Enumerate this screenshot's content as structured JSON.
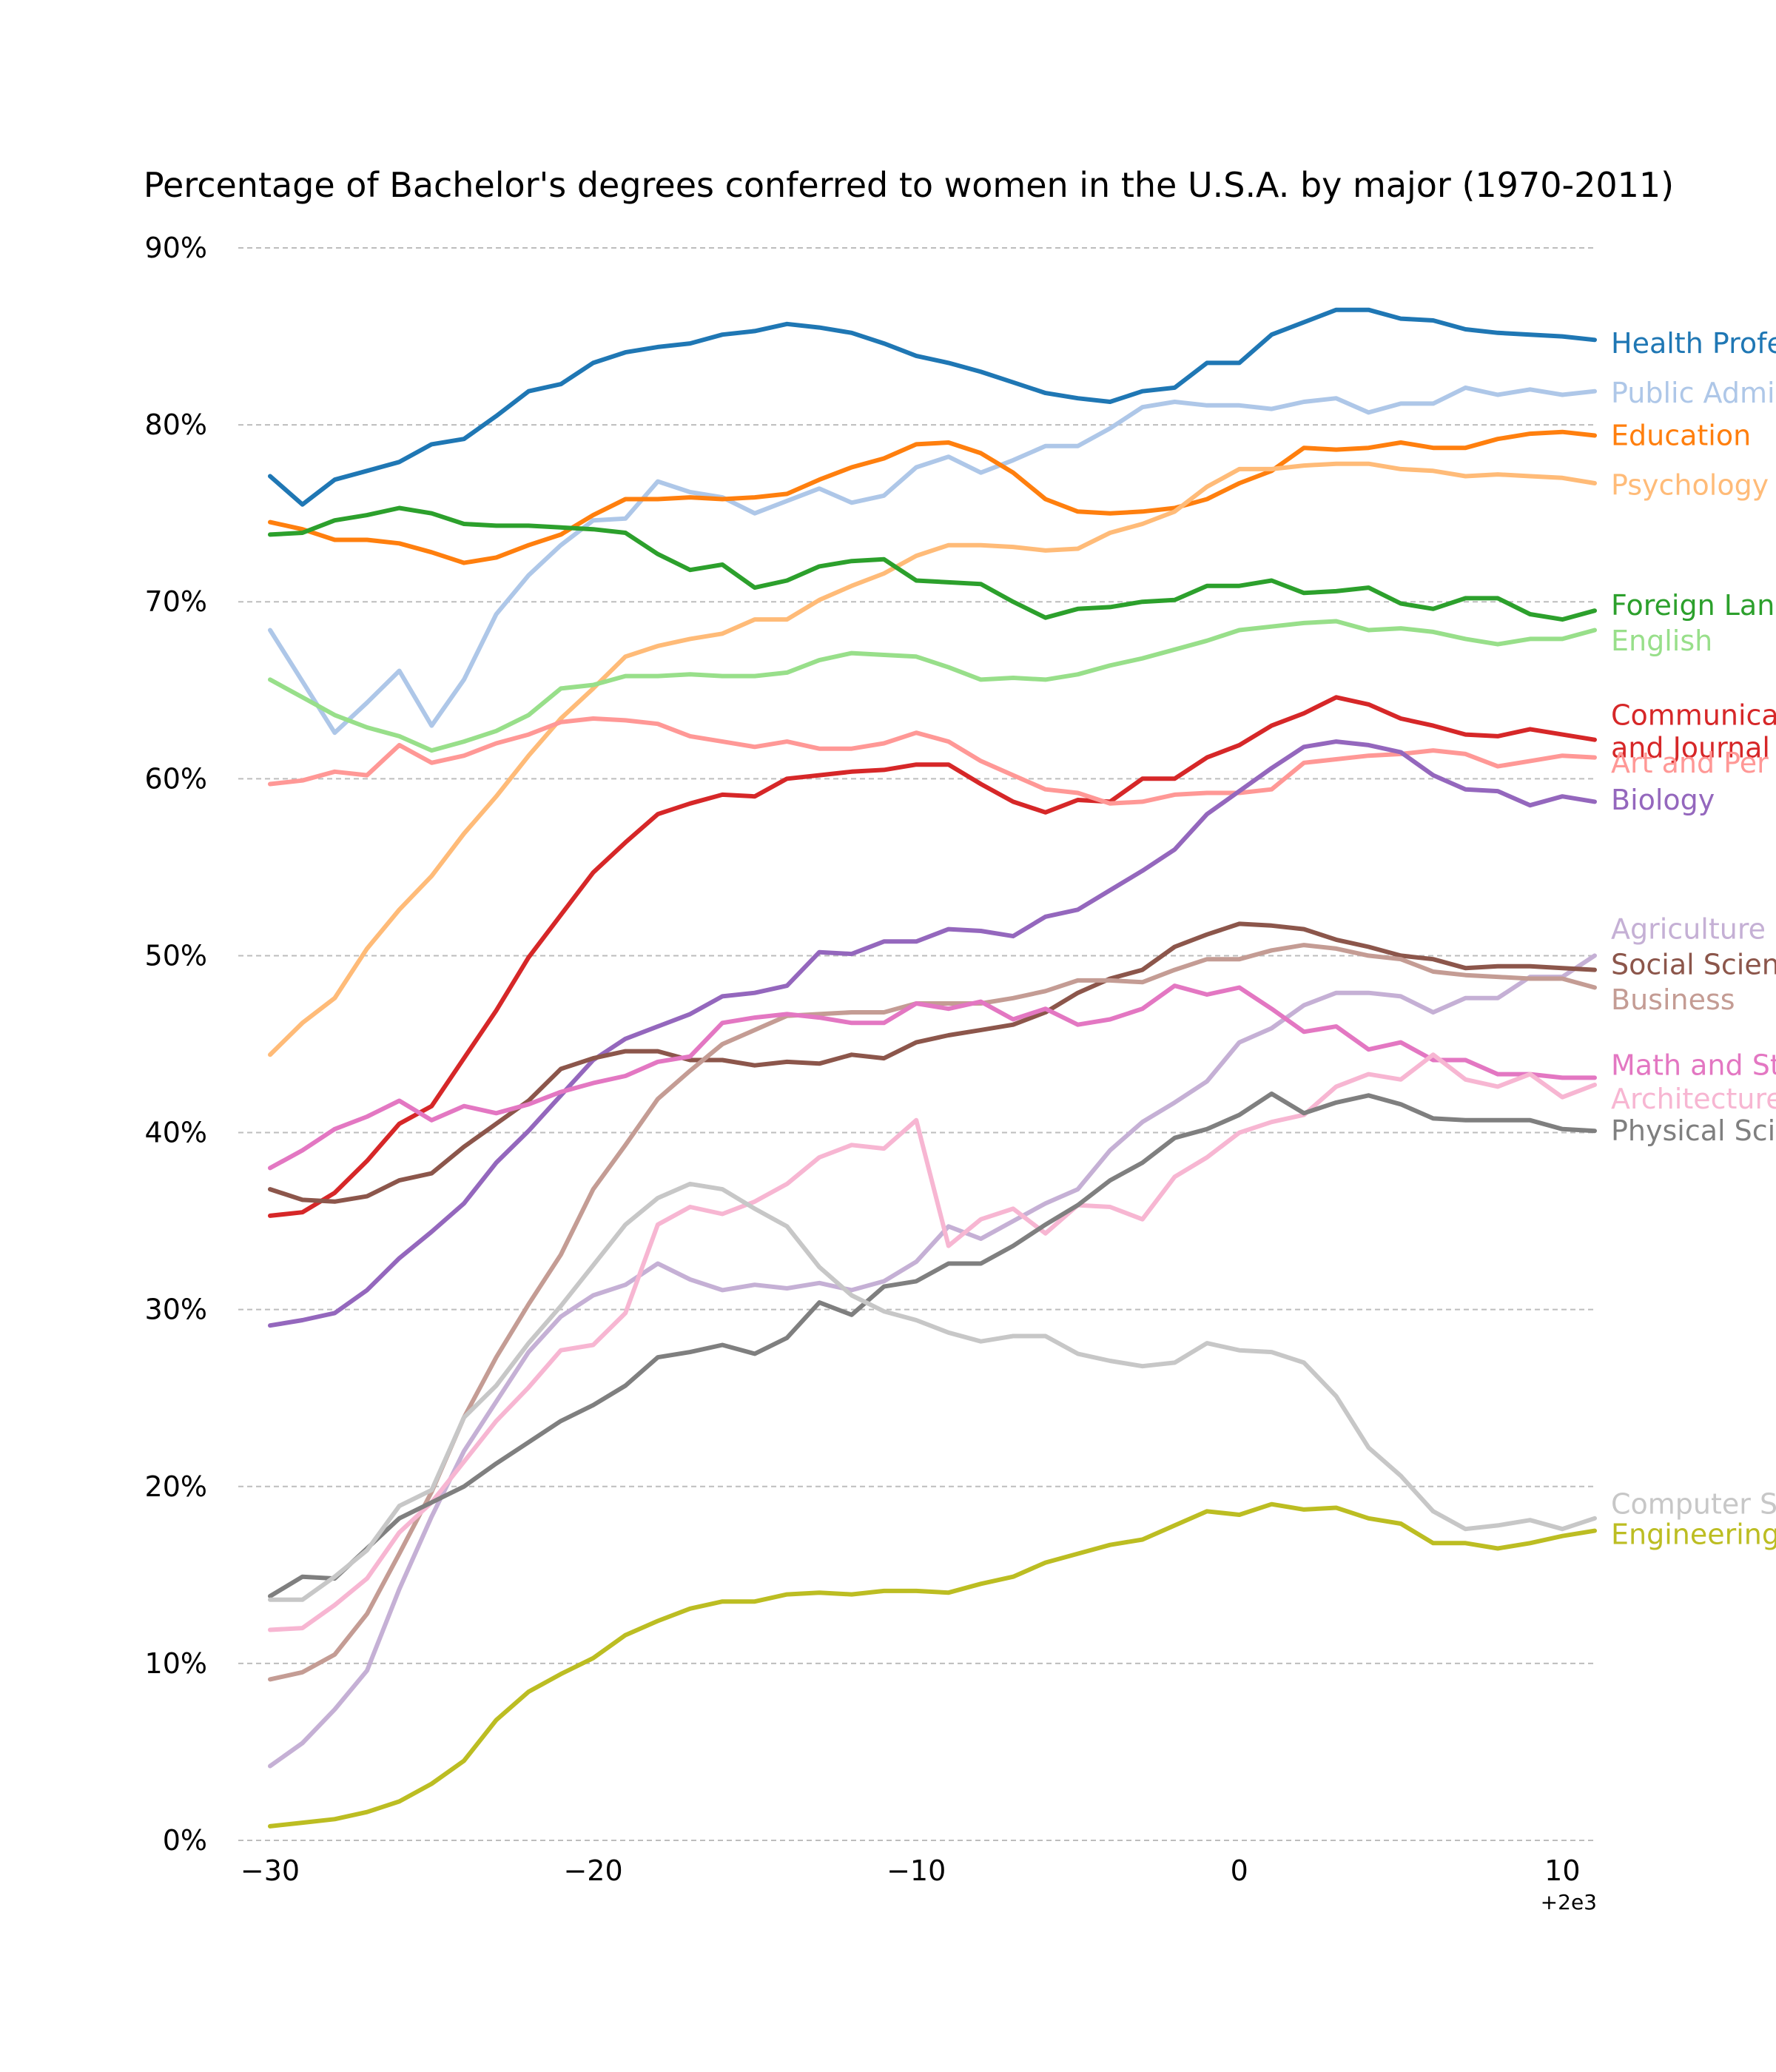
{
  "chart_data": {
    "type": "line",
    "title": "Percentage of Bachelor's degrees conferred to women in the U.S.A. by major (1970-2011)",
    "xlabel": "",
    "ylabel": "",
    "x_offset_label": "+2e3",
    "xlim": [
      1970,
      2011
    ],
    "ylim": [
      0,
      90
    ],
    "grid": "horizontal dashed",
    "legend": "labels at right end of each line",
    "x_ticks": [
      {
        "value": 1970,
        "label": "−30"
      },
      {
        "value": 1980,
        "label": "−20"
      },
      {
        "value": 1990,
        "label": "−10"
      },
      {
        "value": 2000,
        "label": "0"
      },
      {
        "value": 2010,
        "label": "10"
      }
    ],
    "y_ticks": [
      {
        "value": 0,
        "label": "0%"
      },
      {
        "value": 10,
        "label": "10%"
      },
      {
        "value": 20,
        "label": "20%"
      },
      {
        "value": 30,
        "label": "30%"
      },
      {
        "value": 40,
        "label": "40%"
      },
      {
        "value": 50,
        "label": "50%"
      },
      {
        "value": 60,
        "label": "60%"
      },
      {
        "value": 70,
        "label": "70%"
      },
      {
        "value": 80,
        "label": "80%"
      },
      {
        "value": 90,
        "label": "90%"
      }
    ],
    "x": [
      1970,
      1971,
      1972,
      1973,
      1974,
      1975,
      1976,
      1977,
      1978,
      1979,
      1980,
      1981,
      1982,
      1983,
      1984,
      1985,
      1986,
      1987,
      1988,
      1989,
      1990,
      1991,
      1992,
      1993,
      1994,
      1995,
      1996,
      1997,
      1998,
      1999,
      2000,
      2001,
      2002,
      2003,
      2004,
      2005,
      2006,
      2007,
      2008,
      2009,
      2010,
      2011
    ],
    "series": [
      {
        "name": "Health Professions",
        "label_lines": [
          "Health Profe"
        ],
        "label_y": 84.6,
        "color": "#1f77b4",
        "values": [
          77.1,
          75.5,
          76.9,
          77.4,
          77.9,
          78.9,
          79.2,
          80.5,
          81.9,
          82.3,
          83.5,
          84.1,
          84.4,
          84.6,
          85.1,
          85.3,
          85.7,
          85.5,
          85.2,
          84.6,
          83.9,
          83.5,
          83.0,
          82.4,
          81.8,
          81.5,
          81.3,
          81.9,
          82.1,
          83.5,
          83.5,
          85.1,
          85.8,
          86.5,
          86.5,
          86.0,
          85.9,
          85.4,
          85.2,
          85.1,
          85.0,
          84.8
        ]
      },
      {
        "name": "Public Administration",
        "label_lines": [
          "Public Admi"
        ],
        "label_y": 81.8,
        "color": "#aec7e8",
        "values": [
          68.4,
          65.5,
          62.6,
          64.3,
          66.1,
          63.0,
          65.6,
          69.3,
          71.5,
          73.2,
          74.6,
          74.7,
          76.8,
          76.2,
          75.9,
          75.0,
          75.7,
          76.4,
          75.6,
          76.0,
          77.6,
          78.2,
          77.3,
          78.0,
          78.8,
          78.8,
          79.8,
          81.0,
          81.3,
          81.1,
          81.1,
          80.9,
          81.3,
          81.5,
          80.7,
          81.2,
          81.2,
          82.1,
          81.7,
          82.0,
          81.7,
          81.9
        ]
      },
      {
        "name": "Education",
        "label_lines": [
          "Education"
        ],
        "label_y": 79.4,
        "color": "#ff7f0e",
        "values": [
          74.5,
          74.1,
          73.5,
          73.5,
          73.3,
          72.8,
          72.2,
          72.5,
          73.2,
          73.8,
          74.9,
          75.8,
          75.8,
          75.9,
          75.8,
          75.9,
          76.1,
          76.9,
          77.6,
          78.1,
          78.9,
          79.0,
          78.4,
          77.3,
          75.8,
          75.1,
          75.0,
          75.1,
          75.3,
          75.8,
          76.7,
          77.4,
          78.7,
          78.6,
          78.7,
          79.0,
          78.7,
          78.7,
          79.2,
          79.5,
          79.6,
          79.4
        ]
      },
      {
        "name": "Psychology",
        "label_lines": [
          "Psychology"
        ],
        "label_y": 76.6,
        "color": "#ffbb78",
        "values": [
          44.4,
          46.2,
          47.6,
          50.4,
          52.6,
          54.5,
          56.9,
          59.0,
          61.3,
          63.4,
          65.1,
          66.9,
          67.5,
          67.9,
          68.2,
          69.0,
          69.0,
          70.1,
          70.9,
          71.6,
          72.6,
          73.2,
          73.2,
          73.1,
          72.9,
          73.0,
          73.9,
          74.4,
          75.1,
          76.5,
          77.5,
          77.5,
          77.7,
          77.8,
          77.8,
          77.5,
          77.4,
          77.1,
          77.2,
          77.1,
          77.0,
          76.7
        ]
      },
      {
        "name": "Foreign Languages",
        "label_lines": [
          "Foreign Lan"
        ],
        "label_y": 69.8,
        "color": "#2ca02c",
        "values": [
          73.8,
          73.9,
          74.6,
          74.9,
          75.3,
          75.0,
          74.4,
          74.3,
          74.3,
          74.2,
          74.1,
          73.9,
          72.7,
          71.8,
          72.1,
          70.8,
          71.2,
          72.0,
          72.3,
          72.4,
          71.2,
          71.1,
          71.0,
          70.0,
          69.1,
          69.6,
          69.7,
          70.0,
          70.1,
          70.9,
          70.9,
          71.2,
          70.5,
          70.6,
          70.8,
          69.9,
          69.6,
          70.2,
          70.2,
          69.3,
          69.0,
          69.5
        ]
      },
      {
        "name": "English",
        "label_lines": [
          "English"
        ],
        "label_y": 67.8,
        "color": "#98df8a",
        "values": [
          65.6,
          64.6,
          63.6,
          62.9,
          62.4,
          61.6,
          62.1,
          62.7,
          63.6,
          65.1,
          65.3,
          65.8,
          65.8,
          65.9,
          65.8,
          65.8,
          66.0,
          66.7,
          67.1,
          67.0,
          66.9,
          66.3,
          65.6,
          65.7,
          65.6,
          65.9,
          66.4,
          66.8,
          67.3,
          67.8,
          68.4,
          68.6,
          68.8,
          68.9,
          68.4,
          68.5,
          68.3,
          67.9,
          67.6,
          67.9,
          67.9,
          68.4
        ]
      },
      {
        "name": "Communications and Journalism",
        "label_lines": [
          "Communica",
          "and Journal"
        ],
        "label_y": 63.6,
        "color": "#d62728",
        "values": [
          35.3,
          35.5,
          36.6,
          38.4,
          40.5,
          41.5,
          44.2,
          46.9,
          49.9,
          52.3,
          54.7,
          56.4,
          58.0,
          58.6,
          59.1,
          59.0,
          60.0,
          60.2,
          60.4,
          60.5,
          60.8,
          60.8,
          59.7,
          58.7,
          58.1,
          58.8,
          58.7,
          60.0,
          60.0,
          61.2,
          61.9,
          63.0,
          63.7,
          64.6,
          64.2,
          63.4,
          63.0,
          62.5,
          62.4,
          62.8,
          62.5,
          62.2
        ]
      },
      {
        "name": "Art and Performance",
        "label_lines": [
          "Art and Per"
        ],
        "label_y": 60.9,
        "color": "#ff9896",
        "values": [
          59.7,
          59.9,
          60.4,
          60.2,
          61.9,
          60.9,
          61.3,
          62.0,
          62.5,
          63.2,
          63.4,
          63.3,
          63.1,
          62.4,
          62.1,
          61.8,
          62.1,
          61.7,
          61.7,
          62.0,
          62.6,
          62.1,
          61.0,
          60.2,
          59.4,
          59.2,
          58.6,
          58.7,
          59.1,
          59.2,
          59.2,
          59.4,
          60.9,
          61.1,
          61.3,
          61.4,
          61.6,
          61.4,
          60.7,
          61.0,
          61.3,
          61.2
        ]
      },
      {
        "name": "Biology",
        "label_lines": [
          "Biology"
        ],
        "label_y": 58.8,
        "color": "#9467bd",
        "values": [
          29.1,
          29.4,
          29.8,
          31.1,
          32.9,
          34.4,
          36.0,
          38.3,
          40.1,
          42.1,
          44.1,
          45.3,
          46.0,
          46.7,
          47.7,
          47.9,
          48.3,
          50.2,
          50.1,
          50.8,
          50.8,
          51.5,
          51.4,
          51.1,
          52.2,
          52.6,
          53.7,
          54.8,
          56.0,
          58.0,
          59.3,
          60.6,
          61.8,
          62.1,
          61.9,
          61.5,
          60.2,
          59.4,
          59.3,
          58.5,
          59.0,
          58.7
        ]
      },
      {
        "name": "Agriculture",
        "label_lines": [
          "Agriculture"
        ],
        "label_y": 51.5,
        "color": "#c5b0d5",
        "values": [
          4.2,
          5.5,
          7.4,
          9.6,
          14.2,
          18.3,
          22.0,
          24.8,
          27.6,
          29.6,
          30.8,
          31.4,
          32.6,
          31.7,
          31.1,
          31.4,
          31.2,
          31.5,
          31.1,
          31.6,
          32.7,
          34.7,
          34.0,
          35.0,
          36.0,
          36.8,
          39.0,
          40.6,
          41.7,
          42.9,
          45.1,
          45.9,
          47.2,
          47.9,
          47.9,
          47.7,
          46.8,
          47.6,
          47.6,
          48.8,
          48.8,
          50.0
        ]
      },
      {
        "name": "Social Sciences and History",
        "label_lines": [
          "Social Scien"
        ],
        "label_y": 49.5,
        "color": "#8c564b",
        "values": [
          36.8,
          36.2,
          36.1,
          36.4,
          37.3,
          37.7,
          39.2,
          40.5,
          41.8,
          43.6,
          44.2,
          44.6,
          44.6,
          44.1,
          44.1,
          43.8,
          44.0,
          43.9,
          44.4,
          44.2,
          45.1,
          45.5,
          45.8,
          46.1,
          46.8,
          47.9,
          48.7,
          49.2,
          50.5,
          51.2,
          51.8,
          51.7,
          51.5,
          50.9,
          50.5,
          50.0,
          49.8,
          49.3,
          49.4,
          49.4,
          49.3,
          49.2
        ]
      },
      {
        "name": "Business",
        "label_lines": [
          "Business"
        ],
        "label_y": 47.5,
        "color": "#c49c94",
        "values": [
          9.1,
          9.5,
          10.5,
          12.8,
          16.2,
          19.7,
          23.9,
          27.3,
          30.3,
          33.1,
          36.8,
          39.3,
          41.9,
          43.5,
          45.0,
          45.8,
          46.6,
          46.7,
          46.8,
          46.8,
          47.3,
          47.3,
          47.3,
          47.6,
          48.0,
          48.6,
          48.6,
          48.5,
          49.2,
          49.8,
          49.8,
          50.3,
          50.6,
          50.4,
          50.0,
          49.8,
          49.1,
          48.9,
          48.8,
          48.7,
          48.7,
          48.2
        ]
      },
      {
        "name": "Math and Statistics",
        "label_lines": [
          "Math and St"
        ],
        "label_y": 43.8,
        "color": "#e377c2",
        "values": [
          38.0,
          39.0,
          40.2,
          40.9,
          41.8,
          40.7,
          41.5,
          41.1,
          41.6,
          42.3,
          42.8,
          43.2,
          44.0,
          44.3,
          46.2,
          46.5,
          46.7,
          46.5,
          46.2,
          46.2,
          47.3,
          47.0,
          47.4,
          46.4,
          47.0,
          46.1,
          46.4,
          47.0,
          48.3,
          47.8,
          48.2,
          47.0,
          45.7,
          46.0,
          44.7,
          45.1,
          44.1,
          44.1,
          43.3,
          43.3,
          43.1,
          43.1
        ]
      },
      {
        "name": "Architecture",
        "label_lines": [
          "Architecture"
        ],
        "label_y": 41.9,
        "color": "#f7b6d2",
        "values": [
          11.9,
          12.0,
          13.3,
          14.8,
          17.4,
          19.1,
          21.4,
          23.7,
          25.6,
          27.7,
          28.0,
          29.8,
          34.8,
          35.8,
          35.4,
          36.1,
          37.1,
          38.6,
          39.3,
          39.1,
          40.7,
          33.6,
          35.1,
          35.7,
          34.3,
          35.9,
          35.8,
          35.1,
          37.5,
          38.6,
          40.0,
          40.6,
          41.0,
          42.6,
          43.3,
          43.0,
          44.4,
          43.0,
          42.6,
          43.3,
          42.0,
          42.7
        ]
      },
      {
        "name": "Physical Sciences",
        "label_lines": [
          "Physical Sci"
        ],
        "label_y": 40.1,
        "color": "#7f7f7f",
        "values": [
          13.8,
          14.9,
          14.8,
          16.5,
          18.2,
          19.1,
          20.0,
          21.3,
          22.5,
          23.7,
          24.6,
          25.7,
          27.3,
          27.6,
          28.0,
          27.5,
          28.4,
          30.4,
          29.7,
          31.3,
          31.6,
          32.6,
          32.6,
          33.6,
          34.8,
          35.9,
          37.3,
          38.3,
          39.7,
          40.2,
          41.0,
          42.2,
          41.1,
          41.7,
          42.1,
          41.6,
          40.8,
          40.7,
          40.7,
          40.7,
          40.2,
          40.1
        ]
      },
      {
        "name": "Computer Science",
        "label_lines": [
          "Computer S"
        ],
        "label_y": 19.0,
        "color": "#c7c7c7",
        "values": [
          13.6,
          13.6,
          14.9,
          16.4,
          18.9,
          19.8,
          23.9,
          25.7,
          28.1,
          30.2,
          32.5,
          34.8,
          36.3,
          37.1,
          36.8,
          35.7,
          34.7,
          32.4,
          30.8,
          29.9,
          29.4,
          28.7,
          28.2,
          28.5,
          28.5,
          27.5,
          27.1,
          26.8,
          27.0,
          28.1,
          27.7,
          27.6,
          27.0,
          25.1,
          22.2,
          20.6,
          18.6,
          17.6,
          17.8,
          18.1,
          17.6,
          18.2
        ]
      },
      {
        "name": "Engineering",
        "label_lines": [
          "Engineering"
        ],
        "label_y": 17.3,
        "color": "#bcbd22",
        "values": [
          0.8,
          1.0,
          1.2,
          1.6,
          2.2,
          3.2,
          4.5,
          6.8,
          8.4,
          9.4,
          10.3,
          11.6,
          12.4,
          13.1,
          13.5,
          13.5,
          13.9,
          14.0,
          13.9,
          14.1,
          14.1,
          14.0,
          14.5,
          14.9,
          15.7,
          16.2,
          16.7,
          17.0,
          17.8,
          18.6,
          18.4,
          19.0,
          18.7,
          18.8,
          18.2,
          17.9,
          16.8,
          16.8,
          16.5,
          16.8,
          17.2,
          17.5
        ]
      }
    ]
  }
}
